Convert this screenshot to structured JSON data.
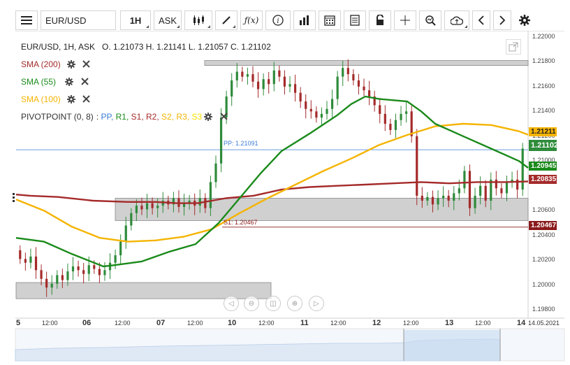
{
  "toolbar": {
    "symbol_value": "EUR/USD",
    "timeframe": "1H",
    "price_type": "ASK"
  },
  "legend": {
    "ohlc": "EUR/USD, 1H, ASK   O. 1.21073 H. 1.21141 L. 1.21057 C. 1.21102",
    "sma200": "SMA (200)",
    "sma55": "SMA (55)",
    "sma100": "SMA (100)",
    "pivot_name": "PIVOTPOINT (0, 8)",
    "pivot_sep": ": ",
    "pivot_items": [
      "PP,",
      "R1,",
      "S1,",
      "R2,",
      "S2,",
      "R3,",
      "S3"
    ]
  },
  "colors": {
    "sma200": "#a52a2a",
    "sma55": "#1a8a1a",
    "sma100": "#f5b400",
    "pp": "#3a7bd5",
    "s1": "#8b1a1a",
    "candle_up": "#2e8b3a",
    "candle_down": "#a52a2a",
    "zone": "#c8c8c8"
  },
  "chart_data": {
    "type": "candlestick",
    "symbol": "EUR/USD",
    "interval": "1H",
    "ylim": [
      1.1975,
      1.2205
    ],
    "yticks": [
      "1.22000",
      "1.21800",
      "1.21600",
      "1.21400",
      "1.21200",
      "1.21000",
      "1.20600",
      "1.20400",
      "1.20200",
      "1.20000",
      "1.19800"
    ],
    "xticks": [
      "5",
      "12:00",
      "06",
      "12:00",
      "07",
      "12:00",
      "10",
      "12:00",
      "11",
      "12:00",
      "12",
      "12:00",
      "13",
      "12:00",
      "14"
    ],
    "x_end_label": "14.05.2021",
    "price_tags": {
      "sma100": "1.21211",
      "last": "1.21102",
      "sma55": "1.20945",
      "sma200": "1.20835",
      "s1": "1.20467"
    },
    "pp_label": "PP: 1.21091",
    "s1_label": "S1: 1.20467",
    "closes": [
      1.2021,
      1.2018,
      1.2023,
      1.2012,
      1.2005,
      1.1998,
      1.2001,
      1.2008,
      1.2004,
      1.2011,
      1.2015,
      1.2012,
      1.2009,
      1.2016,
      1.2013,
      1.2008,
      1.2012,
      1.2018,
      1.2024,
      1.2035,
      1.2048,
      1.2058,
      1.2064,
      1.2061,
      1.2066,
      1.2062,
      1.2064,
      1.2068,
      1.2065,
      1.207,
      1.2063,
      1.2066,
      1.2068,
      1.2064,
      1.207,
      1.2062,
      1.2083,
      1.2098,
      1.2135,
      1.2152,
      1.2165,
      1.2172,
      1.2168,
      1.217,
      1.2164,
      1.2158,
      1.2166,
      1.2162,
      1.2173,
      1.2168,
      1.216,
      1.2162,
      1.2155,
      1.2148,
      1.2142,
      1.214,
      1.2135,
      1.2138,
      1.2142,
      1.215,
      1.2168,
      1.2175,
      1.217,
      1.2165,
      1.216,
      1.2157,
      1.2152,
      1.2145,
      1.2138,
      1.213,
      1.2125,
      1.2133,
      1.2138,
      1.214,
      1.212,
      1.2072,
      1.2068,
      1.2071,
      1.2065,
      1.207,
      1.2072,
      1.2068,
      1.2074,
      1.2078,
      1.2092,
      1.2062,
      1.2072,
      1.208,
      1.2068,
      1.2085,
      1.2078,
      1.2074,
      1.2083,
      1.2085,
      1.2077,
      1.211
    ]
  },
  "sma200": [
    [
      0,
      1.2073
    ],
    [
      20,
      1.2072
    ],
    [
      60,
      1.2071
    ],
    [
      110,
      1.2068
    ],
    [
      160,
      1.2067
    ],
    [
      200,
      1.2067
    ],
    [
      230,
      1.2066
    ],
    [
      260,
      1.2066
    ],
    [
      300,
      1.207
    ],
    [
      340,
      1.2072
    ],
    [
      380,
      1.2077
    ],
    [
      420,
      1.2079
    ],
    [
      460,
      1.208
    ],
    [
      500,
      1.2081
    ],
    [
      540,
      1.2082
    ],
    [
      580,
      1.2083
    ],
    [
      620,
      1.2082
    ],
    [
      660,
      1.2083
    ],
    [
      700,
      1.2083
    ],
    [
      733,
      1.20835
    ]
  ],
  "sma55": [
    [
      0,
      1.2038
    ],
    [
      40,
      1.2035
    ],
    [
      80,
      1.2025
    ],
    [
      125,
      1.2015
    ],
    [
      140,
      1.2016
    ],
    [
      180,
      1.2019
    ],
    [
      220,
      1.2027
    ],
    [
      257,
      1.2033
    ],
    [
      290,
      1.205
    ],
    [
      320,
      1.207
    ],
    [
      350,
      1.209
    ],
    [
      380,
      1.2108
    ],
    [
      420,
      1.2122
    ],
    [
      460,
      1.2137
    ],
    [
      480,
      1.2146
    ],
    [
      500,
      1.2152
    ],
    [
      520,
      1.215
    ],
    [
      560,
      1.2148
    ],
    [
      580,
      1.214
    ],
    [
      600,
      1.213
    ],
    [
      640,
      1.212
    ],
    [
      680,
      1.211
    ],
    [
      720,
      1.21
    ],
    [
      733,
      1.20945
    ]
  ],
  "sma100": [
    [
      0,
      1.2069
    ],
    [
      40,
      1.206
    ],
    [
      80,
      1.2047
    ],
    [
      120,
      1.2038
    ],
    [
      160,
      1.2035
    ],
    [
      200,
      1.2036
    ],
    [
      240,
      1.2039
    ],
    [
      280,
      1.2045
    ],
    [
      320,
      1.2058
    ],
    [
      360,
      1.207
    ],
    [
      400,
      1.2081
    ],
    [
      440,
      1.2092
    ],
    [
      480,
      1.2102
    ],
    [
      520,
      1.2113
    ],
    [
      560,
      1.2121
    ],
    [
      600,
      1.2128
    ],
    [
      640,
      1.213
    ],
    [
      680,
      1.2129
    ],
    [
      720,
      1.2124
    ],
    [
      733,
      1.21211
    ]
  ],
  "zones": [
    {
      "x0": 270,
      "x1": 733,
      "y0": 1.2181,
      "y1": 1.2177
    },
    {
      "x0": 142,
      "x1": 733,
      "y0": 1.207,
      "y1": 1.2052
    },
    {
      "x0": 0,
      "x1": 365,
      "y0": 1.2002,
      "y1": 1.1989
    }
  ]
}
